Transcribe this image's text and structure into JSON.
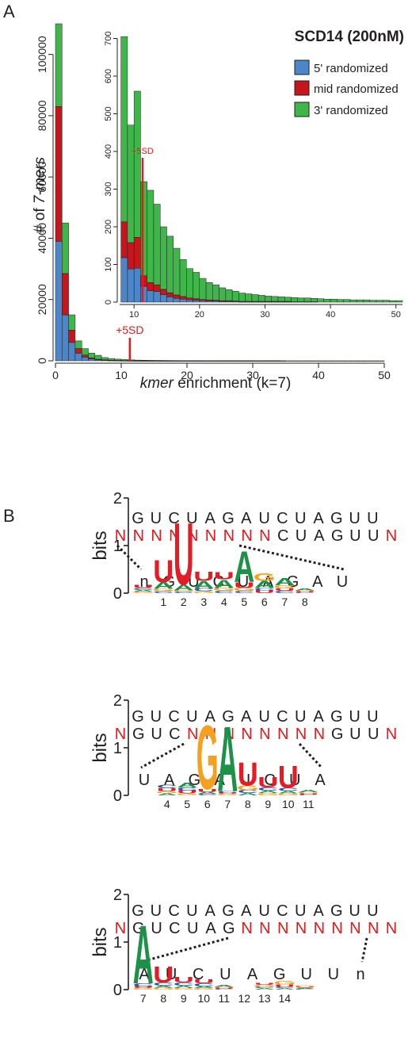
{
  "panels": {
    "a": "A",
    "b": "B"
  },
  "colors": {
    "blue": "#4a86c8",
    "red": "#c4161c",
    "green": "#3fb54a",
    "marker": "#e31a1c",
    "A": "#1e9149",
    "C": "#2b58a6",
    "G": "#f4a020",
    "U": "#e31d26",
    "dark": "#231f20"
  },
  "chart_data": [
    {
      "type": "bar",
      "stacked": true,
      "title": "SCD14 (200nM)",
      "xlabel_italic": "kmer",
      "xlabel_rest": " enrichment (k=7)",
      "ylabel_pre": "# of ",
      "ylabel_italic": "7-mers",
      "xlim": [
        0,
        50
      ],
      "ylim": [
        0,
        110000
      ],
      "xticks": [
        0,
        10,
        20,
        30,
        40,
        50
      ],
      "yticks": [
        0,
        20000,
        40000,
        60000,
        80000,
        100000
      ],
      "bin_start": 0,
      "bin_width": 1,
      "series": [
        {
          "name": "5' randomized",
          "values": [
            39000,
            15000,
            6000,
            2500,
            1200,
            600,
            300,
            180,
            110,
            70,
            45,
            30,
            20,
            15,
            10,
            8,
            6,
            5,
            4,
            3,
            3,
            2,
            2,
            2,
            1,
            1,
            1,
            1,
            1,
            1,
            1,
            1,
            1,
            1,
            0,
            0,
            0,
            0,
            0,
            0,
            0,
            0,
            0,
            0,
            0,
            0,
            0,
            0,
            0,
            0
          ]
        },
        {
          "name": "mid randomized",
          "values": [
            44000,
            13500,
            4000,
            1500,
            700,
            350,
            200,
            130,
            80,
            55,
            40,
            30,
            22,
            15,
            11,
            9,
            7,
            6,
            5,
            4,
            3,
            3,
            2,
            2,
            2,
            1,
            1,
            1,
            1,
            1,
            1,
            1,
            1,
            1,
            1,
            0,
            0,
            0,
            0,
            0,
            0,
            0,
            0,
            0,
            0,
            0,
            0,
            0,
            0,
            0
          ]
        },
        {
          "name": "3' randomized",
          "values": [
            27000,
            16500,
            5000,
            2500,
            2100,
            1550,
            1300,
            750,
            560,
            425,
            325,
            245,
            190,
            155,
            130,
            110,
            95,
            80,
            60,
            50,
            45,
            40,
            35,
            30,
            27,
            25,
            22,
            20,
            18,
            16,
            15,
            13,
            12,
            11,
            10,
            9,
            8,
            8,
            7,
            7,
            6,
            6,
            5,
            5,
            5,
            4,
            4,
            4,
            3,
            3
          ]
        }
      ],
      "marker": {
        "label": "+5SD",
        "x": 11.3
      }
    },
    {
      "type": "bar",
      "stacked": true,
      "inset": true,
      "xlim": [
        7.8,
        51
      ],
      "ylim": [
        0,
        720
      ],
      "xticks": [
        10,
        20,
        30,
        40,
        50
      ],
      "yticks": [
        0,
        100,
        200,
        300,
        400,
        500,
        600,
        700
      ],
      "bin_start": 8,
      "bin_width": 1,
      "series": [
        {
          "name": "5' randomized",
          "values": [
            118,
            88,
            90,
            42,
            30,
            28,
            20,
            14,
            10,
            8,
            6,
            5,
            4,
            3,
            3,
            2,
            2,
            2,
            1,
            1,
            1,
            1,
            1,
            1,
            1,
            1,
            1,
            1,
            1,
            1,
            0,
            0,
            0,
            0,
            0,
            0,
            0,
            0,
            0,
            0,
            0,
            0,
            0
          ]
        },
        {
          "name": "mid randomized",
          "values": [
            95,
            70,
            82,
            28,
            22,
            18,
            14,
            11,
            9,
            7,
            5,
            4,
            3,
            3,
            2,
            2,
            2,
            1,
            1,
            1,
            1,
            1,
            1,
            1,
            1,
            1,
            0,
            0,
            0,
            0,
            0,
            0,
            0,
            0,
            0,
            0,
            0,
            0,
            0,
            0,
            0,
            0,
            0
          ]
        },
        {
          "name": "3' randomized",
          "values": [
            492,
            312,
            388,
            250,
            245,
            214,
            166,
            150,
            124,
            98,
            78,
            70,
            56,
            46,
            41,
            34,
            29,
            26,
            22,
            20,
            18,
            16,
            14,
            13,
            12,
            11,
            11,
            10,
            10,
            9,
            9,
            8,
            8,
            7,
            7,
            6,
            6,
            6,
            5,
            5,
            5,
            4,
            4
          ]
        }
      ],
      "marker": {
        "label": "+5SD",
        "x": 11.3
      }
    }
  ],
  "logos": [
    {
      "top_seq": "GUCUAGAUCUAGUU",
      "rand_seq": [
        {
          "t": "N",
          "red": true
        },
        {
          "t": "NNNNNNNN",
          "red": true
        },
        {
          "t": "CUAGUU",
          "red": false
        },
        {
          "t": "N",
          "red": true
        }
      ],
      "consensus": [
        "n",
        "G",
        "U",
        "C",
        "U",
        "A",
        "G",
        "A",
        "U"
      ],
      "ylabel": "bits",
      "yticks": [
        "0",
        "1",
        "2"
      ],
      "xticks": [
        "",
        "1",
        "2",
        "3",
        "4",
        "5",
        "6",
        "7",
        "8"
      ],
      "columns": [
        [
          [
            "G",
            0.03
          ],
          [
            "A",
            0.04
          ],
          [
            "C",
            0.04
          ],
          [
            "U",
            0.07
          ]
        ],
        [
          [
            "C",
            0.04
          ],
          [
            "G",
            0.05
          ],
          [
            "A",
            0.14
          ],
          [
            "U",
            0.48
          ]
        ],
        [
          [
            "C",
            0.03
          ],
          [
            "G",
            0.03
          ],
          [
            "A",
            0.12
          ],
          [
            "U",
            1.34
          ]
        ],
        [
          [
            "G",
            0.04
          ],
          [
            "C",
            0.06
          ],
          [
            "A",
            0.16
          ],
          [
            "U",
            0.2
          ]
        ],
        [
          [
            "C",
            0.05
          ],
          [
            "G",
            0.06
          ],
          [
            "A",
            0.18
          ],
          [
            "U",
            0.15
          ]
        ],
        [
          [
            "C",
            0.05
          ],
          [
            "G",
            0.06
          ],
          [
            "U",
            0.12
          ],
          [
            "A",
            0.67
          ]
        ],
        [
          [
            "U",
            0.06
          ],
          [
            "C",
            0.05
          ],
          [
            "A",
            0.15
          ],
          [
            "G",
            0.17
          ]
        ],
        [
          [
            "C",
            0.05
          ],
          [
            "U",
            0.05
          ],
          [
            "G",
            0.07
          ],
          [
            "A",
            0.15
          ]
        ],
        [
          [
            "C",
            0.02
          ],
          [
            "U",
            0.02
          ],
          [
            "G",
            0.02
          ],
          [
            "A",
            0.04
          ]
        ]
      ]
    },
    {
      "top_seq": "GUCUAGAUCUAGUU",
      "rand_seq": [
        {
          "t": "N",
          "red": true
        },
        {
          "t": "GUC",
          "red": false
        },
        {
          "t": "NNNNNNNN",
          "red": true
        },
        {
          "t": "GUU",
          "red": false
        },
        {
          "t": "N",
          "red": true
        }
      ],
      "consensus": [
        "U",
        "A",
        "G",
        "A",
        "U",
        "C",
        "U",
        "A"
      ],
      "ylabel": "bits",
      "yticks": [
        "0",
        "1",
        "2"
      ],
      "xticks": [
        "4",
        "5",
        "6",
        "7",
        "8",
        "9",
        "10",
        "11"
      ],
      "columns": [
        [
          [
            "A",
            0.04
          ],
          [
            "G",
            0.04
          ],
          [
            "U",
            0.07
          ],
          [
            "C",
            0.08
          ]
        ],
        [
          [
            "G",
            0.04
          ],
          [
            "U",
            0.06
          ],
          [
            "C",
            0.07
          ],
          [
            "A",
            0.1
          ]
        ],
        [
          [
            "C",
            0.03
          ],
          [
            "A",
            0.04
          ],
          [
            "U",
            0.06
          ],
          [
            "G",
            1.38
          ]
        ],
        [
          [
            "G",
            0.03
          ],
          [
            "U",
            0.03
          ],
          [
            "C",
            0.03
          ],
          [
            "A",
            1.4
          ]
        ],
        [
          [
            "A",
            0.05
          ],
          [
            "C",
            0.06
          ],
          [
            "G",
            0.1
          ],
          [
            "U",
            0.5
          ]
        ],
        [
          [
            "G",
            0.05
          ],
          [
            "A",
            0.05
          ],
          [
            "C",
            0.07
          ],
          [
            "U",
            0.22
          ]
        ],
        [
          [
            "G",
            0.04
          ],
          [
            "A",
            0.05
          ],
          [
            "C",
            0.07
          ],
          [
            "U",
            0.48
          ]
        ],
        [
          [
            "C",
            0.02
          ],
          [
            "U",
            0.02
          ],
          [
            "G",
            0.03
          ],
          [
            "A",
            0.05
          ]
        ]
      ]
    },
    {
      "top_seq": "GUCUAGAUCUAGUU",
      "rand_seq": [
        {
          "t": "N",
          "red": true
        },
        {
          "t": "GUCUAG",
          "red": false
        },
        {
          "t": "NNNNNNNN",
          "red": true
        },
        {
          "t": "N",
          "red": true
        }
      ],
      "consensus": [
        "A",
        "U",
        "C",
        "U",
        "A",
        "G",
        "U",
        "U",
        "n"
      ],
      "ylabel": "bits",
      "yticks": [
        "0",
        "1",
        "2"
      ],
      "xticks": [
        "7",
        "8",
        "9",
        "10",
        "11",
        "12",
        "13",
        "14",
        ""
      ],
      "columns": [
        [
          [
            "G",
            0.03
          ],
          [
            "U",
            0.04
          ],
          [
            "C",
            0.06
          ],
          [
            "A",
            1.26
          ]
        ],
        [
          [
            "G",
            0.04
          ],
          [
            "A",
            0.04
          ],
          [
            "C",
            0.07
          ],
          [
            "U",
            0.34
          ]
        ],
        [
          [
            "G",
            0.03
          ],
          [
            "A",
            0.05
          ],
          [
            "C",
            0.07
          ],
          [
            "U",
            0.12
          ]
        ],
        [
          [
            "G",
            0.03
          ],
          [
            "A",
            0.04
          ],
          [
            "C",
            0.06
          ],
          [
            "U",
            0.09
          ]
        ],
        [
          [
            "C",
            0.02
          ],
          [
            "U",
            0.02
          ],
          [
            "G",
            0.02
          ],
          [
            "A",
            0.04
          ]
        ],
        [],
        [
          [
            "A",
            0.03
          ],
          [
            "C",
            0.03
          ],
          [
            "G",
            0.04
          ],
          [
            "U",
            0.04
          ]
        ],
        [
          [
            "A",
            0.03
          ],
          [
            "C",
            0.03
          ],
          [
            "U",
            0.05
          ],
          [
            "G",
            0.08
          ]
        ],
        [
          [
            "C",
            0.02
          ],
          [
            "A",
            0.02
          ],
          [
            "U",
            0.02
          ],
          [
            "G",
            0.03
          ]
        ]
      ]
    }
  ]
}
